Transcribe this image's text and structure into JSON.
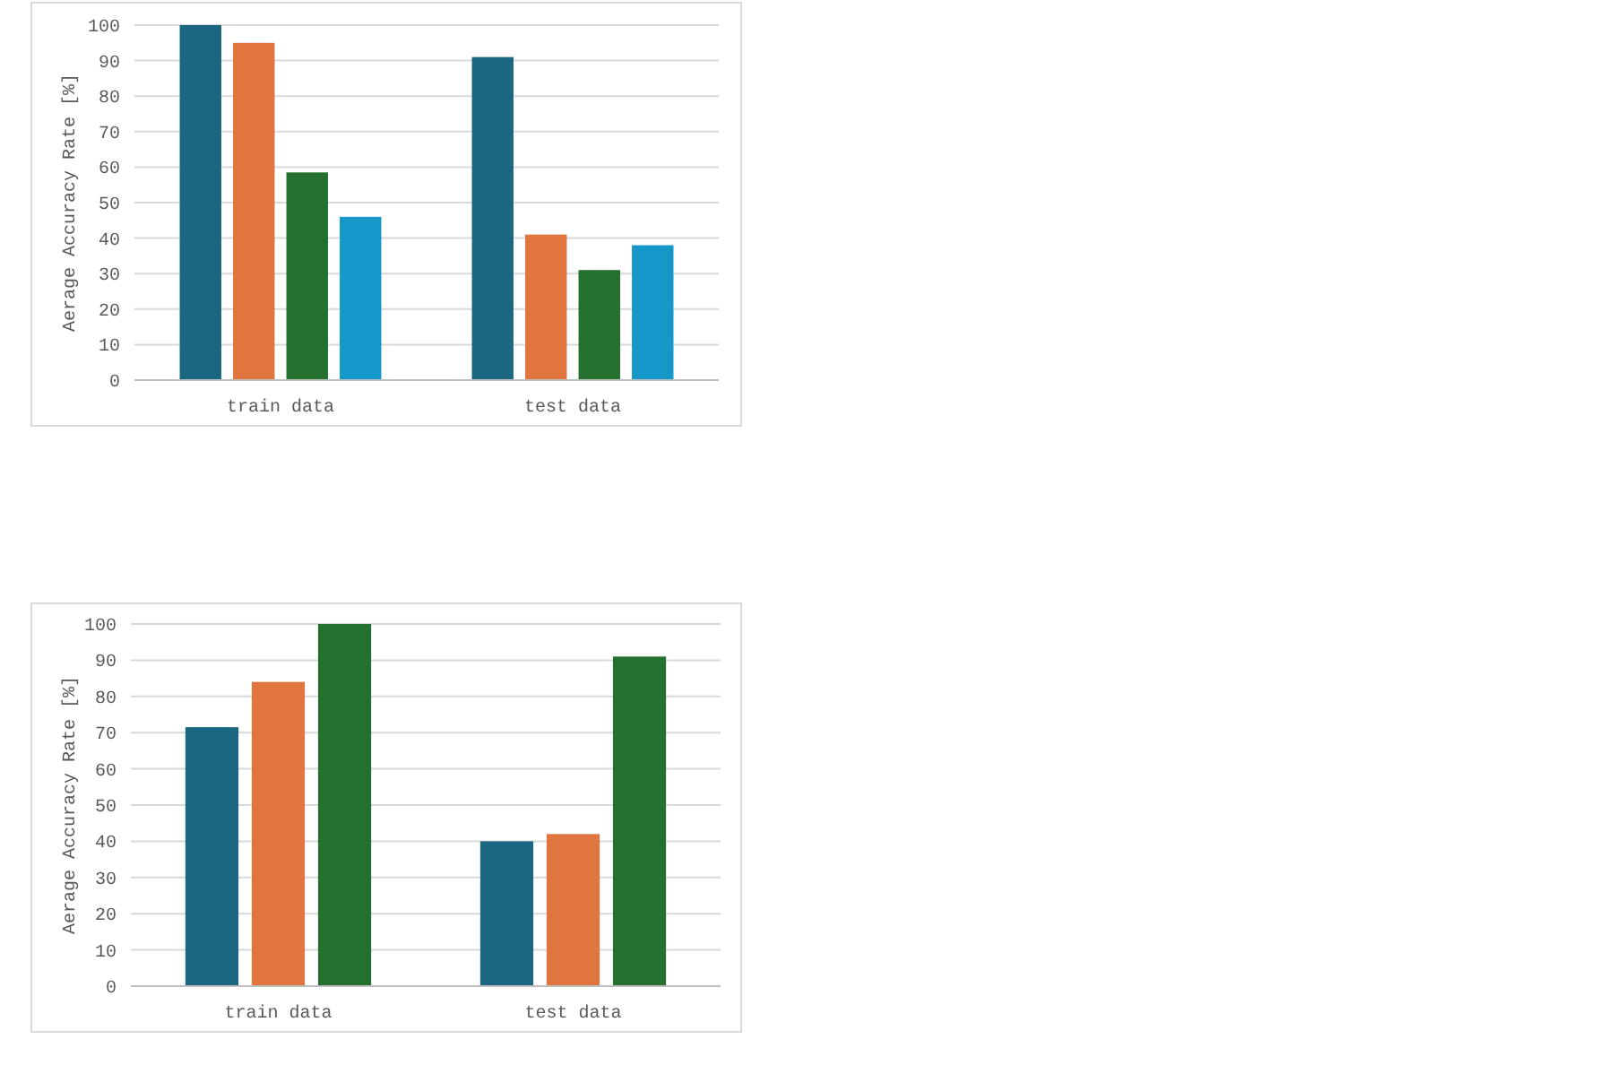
{
  "chart_data": [
    {
      "type": "bar",
      "ylabel": "Aerage Accuracy Rate [%]",
      "categories": [
        "train data",
        "test data"
      ],
      "series": [
        {
          "color": "#1b6680",
          "values": [
            100,
            91
          ]
        },
        {
          "color": "#e07540",
          "values": [
            95,
            41
          ]
        },
        {
          "color": "#23702f",
          "values": [
            58.5,
            31
          ]
        },
        {
          "color": "#1597c9",
          "values": [
            46,
            38
          ]
        }
      ],
      "ylim": [
        0,
        100
      ],
      "yticks": [
        0,
        10,
        20,
        30,
        40,
        50,
        60,
        70,
        80,
        90,
        100
      ],
      "grid": "y"
    },
    {
      "type": "bar",
      "ylabel": "Aerage Accuracy Rate [%]",
      "categories": [
        "train data",
        "test data"
      ],
      "series": [
        {
          "color": "#1b6680",
          "values": [
            71.5,
            40
          ]
        },
        {
          "color": "#e07540",
          "values": [
            84,
            42
          ]
        },
        {
          "color": "#23702f",
          "values": [
            100,
            91
          ]
        }
      ],
      "ylim": [
        0,
        100
      ],
      "yticks": [
        0,
        10,
        20,
        30,
        40,
        50,
        60,
        70,
        80,
        90,
        100
      ],
      "grid": "y"
    }
  ]
}
